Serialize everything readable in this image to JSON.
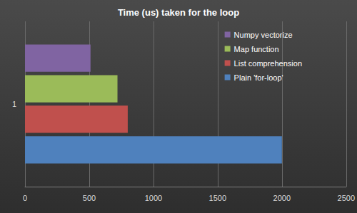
{
  "chart_data": {
    "type": "bar",
    "title": "Time (us) taken for the loop",
    "orientation": "horizontal",
    "categories": [
      "1"
    ],
    "series": [
      {
        "name": "Numpy vectorize",
        "color": "#8064a2",
        "values": [
          510
        ]
      },
      {
        "name": "Map function",
        "color": "#9bbb59",
        "values": [
          720
        ]
      },
      {
        "name": "List comprehension",
        "color": "#c0504d",
        "values": [
          800
        ]
      },
      {
        "name": "Plain 'for-loop'",
        "color": "#4f81bd",
        "values": [
          2000
        ]
      }
    ],
    "xlim": [
      0,
      2500
    ],
    "xticks": [
      0,
      500,
      1000,
      1500,
      2000,
      2500
    ],
    "grid": true,
    "legend": "upper right"
  }
}
